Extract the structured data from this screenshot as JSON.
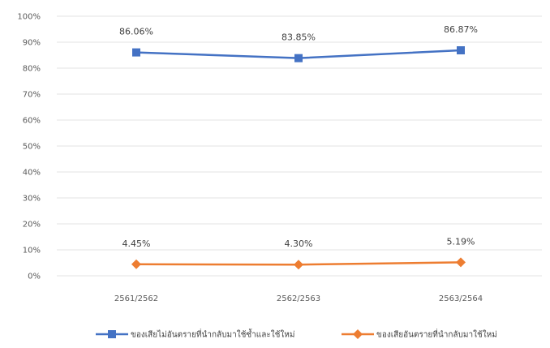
{
  "chart_data": {
    "type": "line",
    "categories": [
      "2561/2562",
      "2562/2563",
      "2563/2564"
    ],
    "series": [
      {
        "name": "ของเสียไม่อันตรายที่นำกลับมาใช้ซ้ำและใช้ใหม่",
        "values": [
          86.06,
          83.85,
          86.87
        ],
        "labels": [
          "86.06%",
          "83.85%",
          "86.87%"
        ],
        "color": "#4472C4",
        "marker": "square"
      },
      {
        "name": "ของเสียอันตรายที่นำกลับมาใช้ใหม่",
        "values": [
          4.45,
          4.3,
          5.19
        ],
        "labels": [
          "4.45%",
          "4.30%",
          "5.19%"
        ],
        "color": "#ED7D31",
        "marker": "diamond"
      }
    ],
    "ylim": [
      0,
      100
    ],
    "yticks": [
      "0%",
      "10%",
      "20%",
      "30%",
      "40%",
      "50%",
      "60%",
      "70%",
      "80%",
      "90%",
      "100%"
    ],
    "grid": true,
    "legend_position": "bottom"
  }
}
